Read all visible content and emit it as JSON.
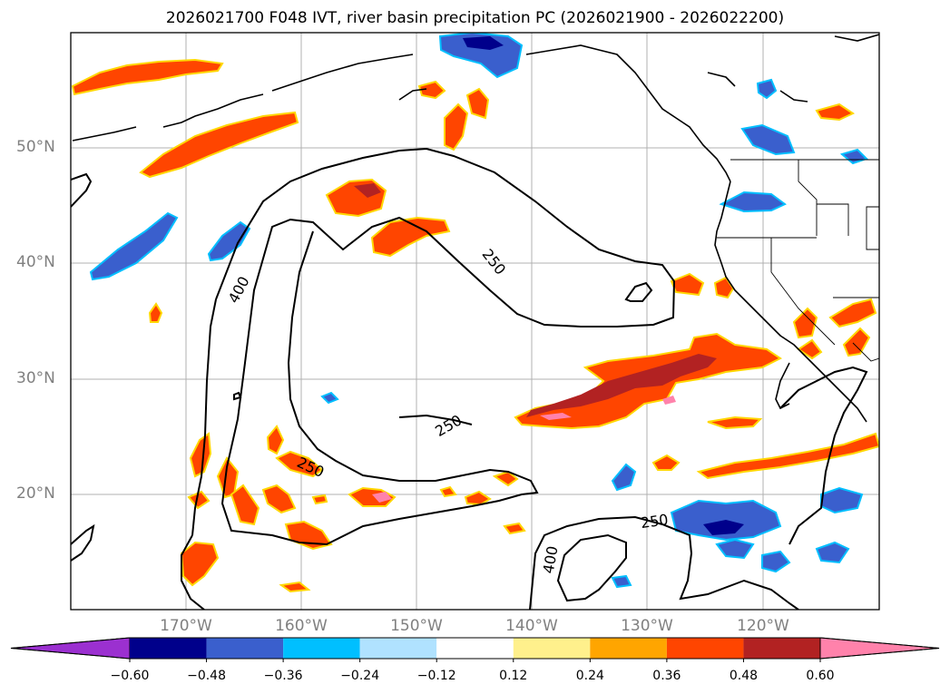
{
  "title": "2026021700 F048 IVT, river basin precipitation PC (2026021900 - 2026022200)",
  "map": {
    "lat_labels": [
      "50°N",
      "40°N",
      "30°N",
      "20°N"
    ],
    "lon_labels": [
      "170°W",
      "160°W",
      "150°W",
      "140°W",
      "130°W",
      "120°W"
    ],
    "contour_labels": [
      "400",
      "250",
      "250",
      "250",
      "250",
      "400"
    ]
  },
  "colorbar": {
    "ticks": [
      "−0.60",
      "−0.48",
      "−0.36",
      "−0.24",
      "−0.12",
      "0.12",
      "0.24",
      "0.36",
      "0.48",
      "0.60"
    ],
    "colors": [
      "#9b30d0",
      "#00008b",
      "#3a5fcd",
      "#00bfff",
      "#b0e2ff",
      "#ffffff",
      "#fff08c",
      "#ffa500",
      "#ff4500",
      "#b22222",
      "#ff82ab"
    ]
  }
}
